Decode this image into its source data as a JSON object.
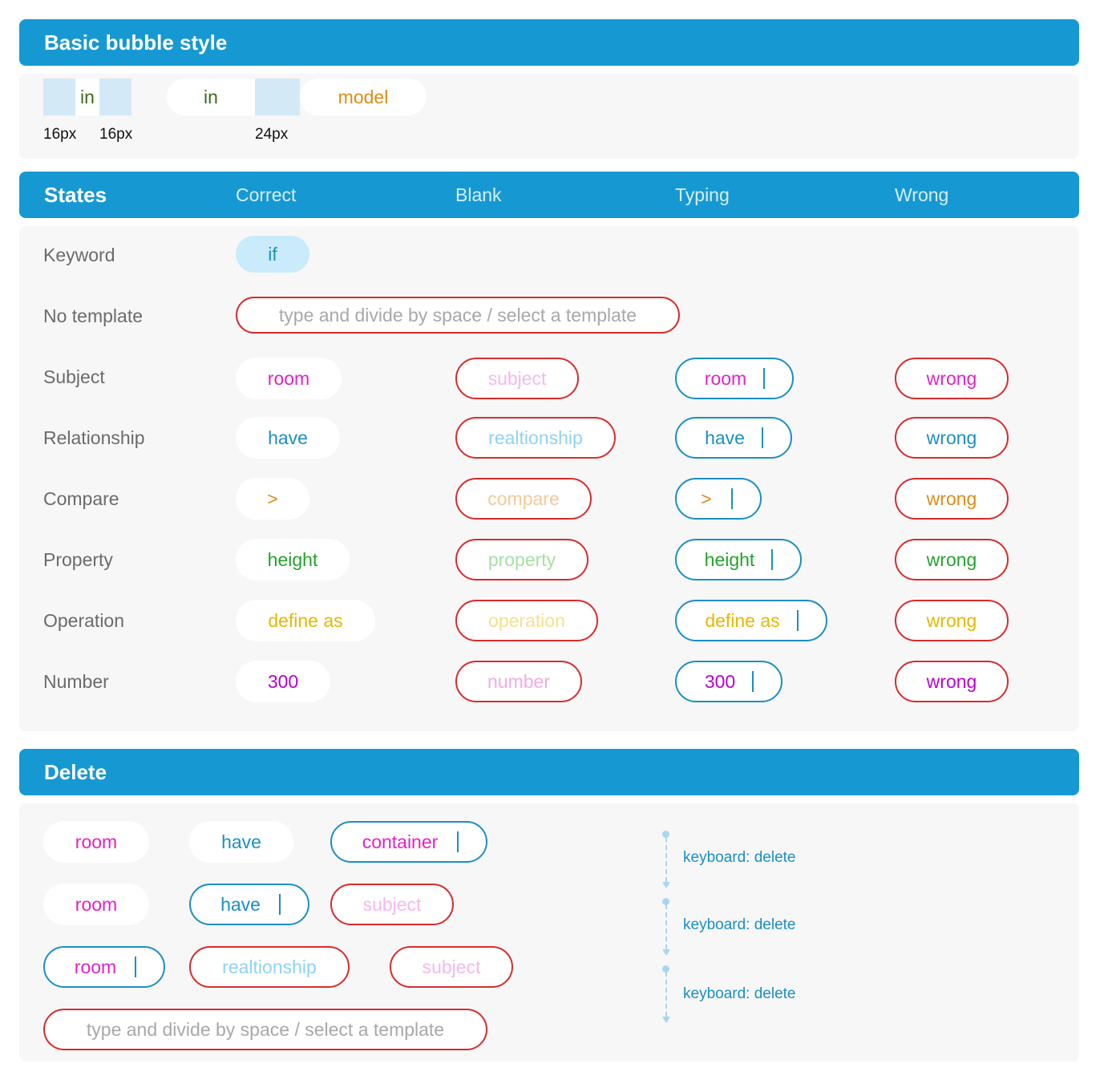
{
  "colors": {
    "header": "#1699d3",
    "panel": "#f7f7f7",
    "wrong_border": "#d92b2b",
    "typing_border": "#1a8fc4",
    "keyword_bg": "#c9ebfb",
    "subject": "#e620c8",
    "relationship": "#1a8fc4",
    "compare": "#e08a17",
    "property": "#22a42c",
    "operation": "#e6b800",
    "number": "#b800d6",
    "placeholder": "#a8a8a8"
  },
  "basic": {
    "title": "Basic bubble style",
    "word1": "in",
    "word2": "in",
    "word3": "model",
    "dim1": "16px",
    "dim2": "16px",
    "dim3": "24px"
  },
  "states": {
    "title": "States",
    "columns": [
      "Correct",
      "Blank",
      "Typing",
      "Wrong"
    ],
    "keyword_label": "Keyword",
    "keyword_value": "if",
    "no_template_label": "No template",
    "no_template_placeholder": "type and divide by space / select a template",
    "rows": [
      {
        "label": "Subject",
        "correct": "room",
        "blank": "subject",
        "typing": "room",
        "wrong": "wrong"
      },
      {
        "label": "Relationship",
        "correct": "have",
        "blank": "realtionship",
        "typing": "have",
        "wrong": "wrong"
      },
      {
        "label": "Compare",
        "correct": ">",
        "blank": "compare",
        "typing": ">",
        "wrong": "wrong"
      },
      {
        "label": "Property",
        "correct": "height",
        "blank": "property",
        "typing": "height",
        "wrong": "wrong"
      },
      {
        "label": "Operation",
        "correct": "define as",
        "blank": "operation",
        "typing": "define as",
        "wrong": "wrong"
      },
      {
        "label": "Number",
        "correct": "300",
        "blank": "number",
        "typing": "300",
        "wrong": "wrong"
      }
    ]
  },
  "delete": {
    "title": "Delete",
    "row1": [
      "room",
      "have",
      "container"
    ],
    "row2": [
      "room",
      "have",
      "subject"
    ],
    "row3": [
      "room",
      "realtionship",
      "subject"
    ],
    "row4": "type and divide by space / select a template",
    "annotations": [
      "keyboard: delete",
      "keyboard: delete",
      "keyboard: delete"
    ]
  }
}
